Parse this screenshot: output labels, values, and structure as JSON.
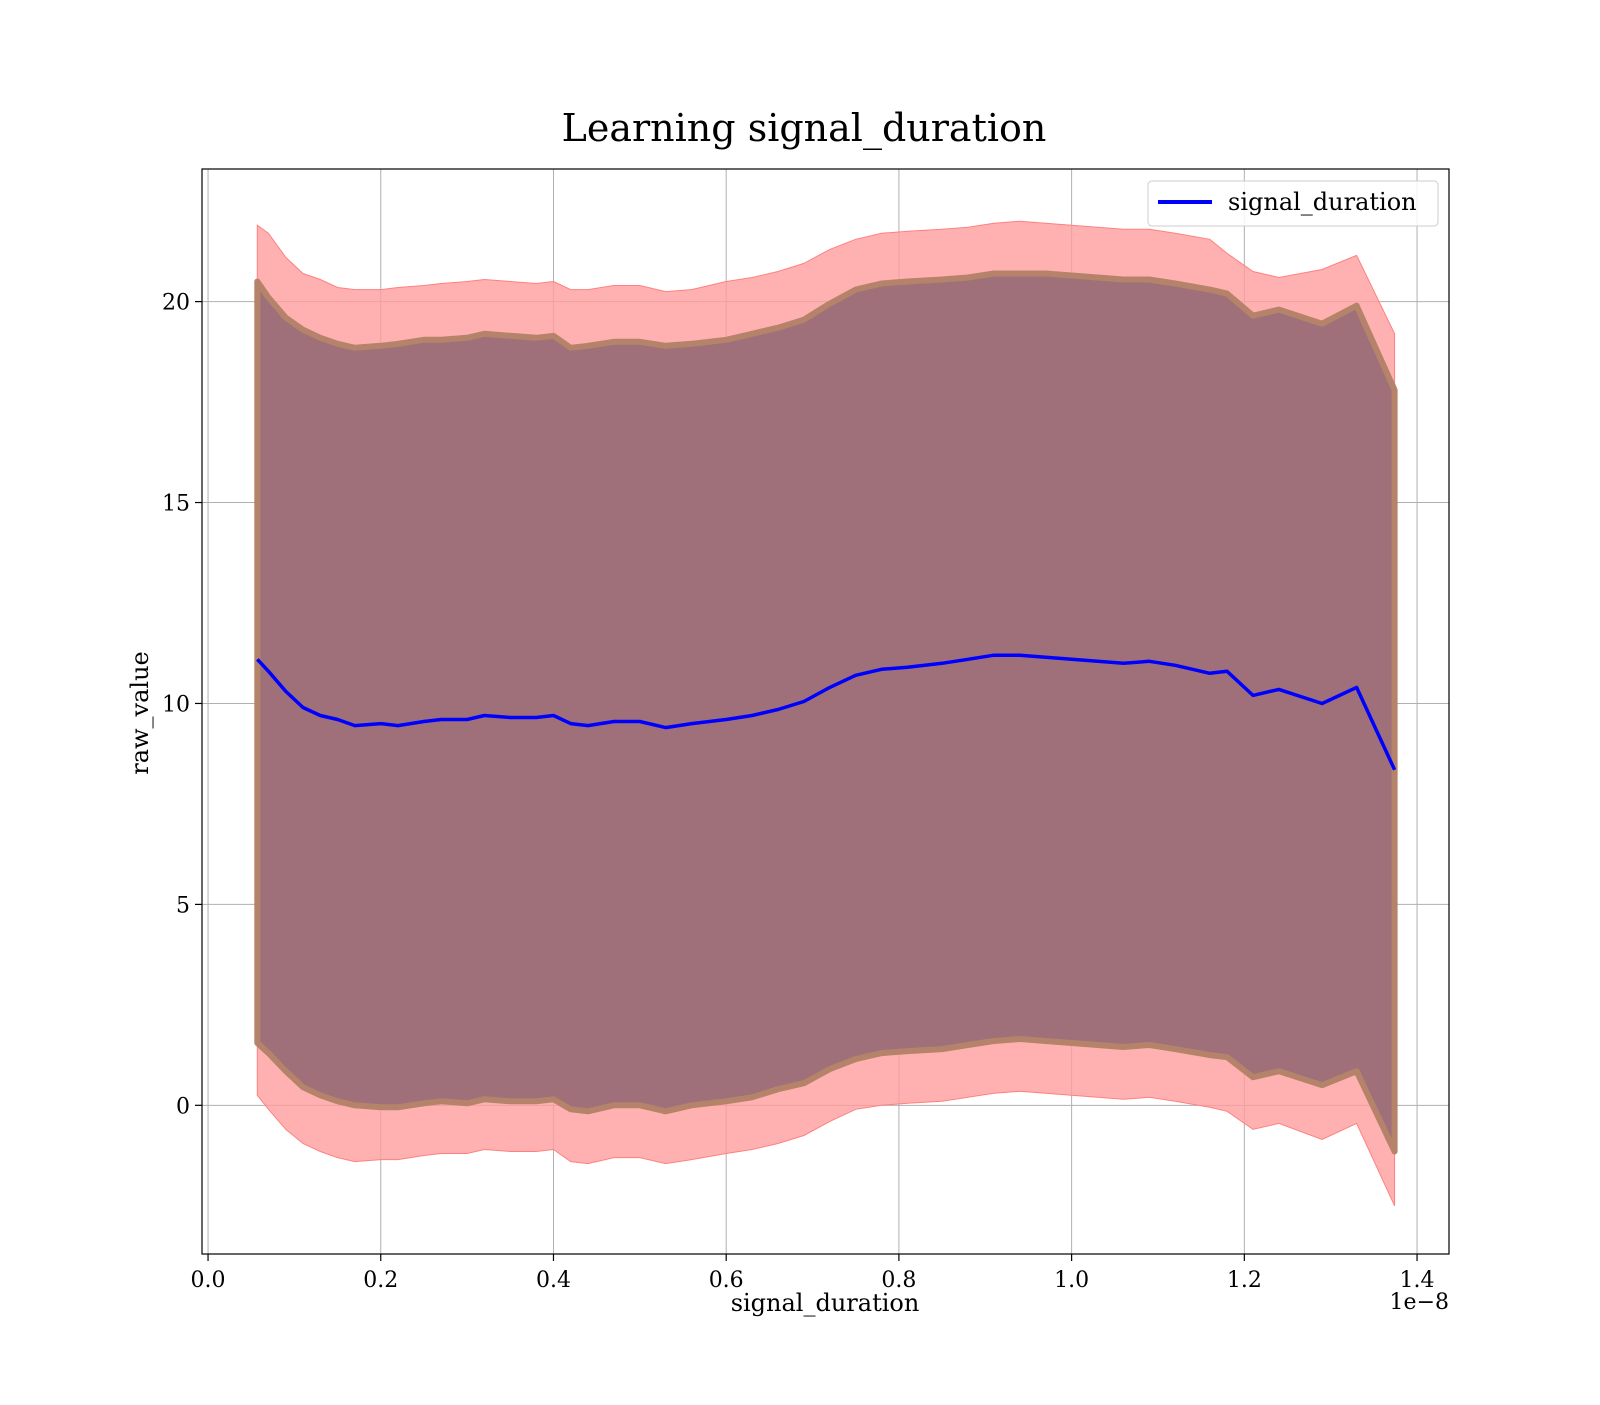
{
  "chart_data": {
    "type": "area",
    "title": "Learning signal_duration",
    "xlabel": "signal_duration",
    "ylabel": "raw_value",
    "x_offset_label": "1e−8",
    "xlim": [
      -0.007,
      1.437
    ],
    "ylim": [
      -3.7,
      23.3
    ],
    "x_ticks": [
      0.0,
      0.2,
      0.4,
      0.6,
      0.8,
      1.0,
      1.2,
      1.4
    ],
    "x_tick_labels": [
      "0.0",
      "0.2",
      "0.4",
      "0.6",
      "0.8",
      "1.0",
      "1.2",
      "1.4"
    ],
    "y_ticks": [
      0,
      5,
      10,
      15,
      20
    ],
    "y_tick_labels": [
      "0",
      "5",
      "10",
      "15",
      "20"
    ],
    "grid": true,
    "legend_position": "top-right",
    "legend": [
      "signal_duration"
    ],
    "colors": {
      "line": "#0000ff",
      "outer_band": "#ff9e9e",
      "inner_band": "#a0707a",
      "inner_band_edge": "#b5836a",
      "grid": "#b0b0b0"
    },
    "x": [
      0.057,
      0.07,
      0.09,
      0.11,
      0.13,
      0.15,
      0.17,
      0.2,
      0.22,
      0.25,
      0.27,
      0.3,
      0.32,
      0.35,
      0.38,
      0.4,
      0.42,
      0.44,
      0.47,
      0.5,
      0.53,
      0.56,
      0.6,
      0.63,
      0.66,
      0.69,
      0.72,
      0.75,
      0.78,
      0.81,
      0.85,
      0.88,
      0.91,
      0.94,
      0.97,
      1.0,
      1.03,
      1.06,
      1.09,
      1.12,
      1.16,
      1.18,
      1.21,
      1.24,
      1.29,
      1.33,
      1.374
    ],
    "series": [
      {
        "name": "signal_duration",
        "values": [
          11.1,
          10.8,
          10.3,
          9.9,
          9.7,
          9.6,
          9.45,
          9.5,
          9.45,
          9.55,
          9.6,
          9.6,
          9.7,
          9.65,
          9.65,
          9.7,
          9.5,
          9.45,
          9.55,
          9.55,
          9.4,
          9.5,
          9.6,
          9.7,
          9.85,
          10.05,
          10.4,
          10.7,
          10.85,
          10.9,
          11.0,
          11.1,
          11.2,
          11.2,
          11.15,
          11.1,
          11.05,
          11.0,
          11.05,
          10.95,
          10.75,
          10.8,
          10.2,
          10.35,
          10.0,
          10.4,
          8.35
        ]
      }
    ],
    "inner_band": {
      "upper": [
        20.5,
        20.1,
        19.6,
        19.3,
        19.1,
        18.95,
        18.85,
        18.9,
        18.95,
        19.05,
        19.05,
        19.1,
        19.2,
        19.15,
        19.1,
        19.15,
        18.85,
        18.9,
        19.0,
        19.0,
        18.9,
        18.95,
        19.05,
        19.2,
        19.35,
        19.55,
        19.95,
        20.3,
        20.45,
        20.5,
        20.55,
        20.6,
        20.7,
        20.7,
        20.7,
        20.65,
        20.6,
        20.55,
        20.55,
        20.45,
        20.3,
        20.2,
        19.65,
        19.8,
        19.45,
        19.9,
        17.8
      ],
      "lower": [
        1.55,
        1.3,
        0.85,
        0.45,
        0.25,
        0.1,
        0.0,
        -0.05,
        -0.05,
        0.05,
        0.1,
        0.05,
        0.15,
        0.1,
        0.1,
        0.15,
        -0.1,
        -0.15,
        0.0,
        0.0,
        -0.15,
        0.0,
        0.1,
        0.2,
        0.4,
        0.55,
        0.9,
        1.15,
        1.3,
        1.35,
        1.4,
        1.5,
        1.6,
        1.65,
        1.6,
        1.55,
        1.5,
        1.45,
        1.5,
        1.4,
        1.25,
        1.2,
        0.7,
        0.85,
        0.5,
        0.85,
        -1.15
      ]
    },
    "outer_band": {
      "upper": [
        21.9,
        21.7,
        21.1,
        20.7,
        20.55,
        20.35,
        20.3,
        20.3,
        20.35,
        20.4,
        20.45,
        20.5,
        20.55,
        20.5,
        20.45,
        20.5,
        20.3,
        20.3,
        20.4,
        20.4,
        20.25,
        20.3,
        20.5,
        20.6,
        20.75,
        20.95,
        21.3,
        21.55,
        21.7,
        21.75,
        21.8,
        21.85,
        21.95,
        22.0,
        21.95,
        21.9,
        21.85,
        21.8,
        21.8,
        21.7,
        21.55,
        21.2,
        20.75,
        20.6,
        20.8,
        21.15,
        19.2
      ],
      "lower": [
        0.25,
        -0.1,
        -0.6,
        -0.95,
        -1.15,
        -1.3,
        -1.4,
        -1.35,
        -1.35,
        -1.25,
        -1.2,
        -1.2,
        -1.1,
        -1.15,
        -1.15,
        -1.1,
        -1.4,
        -1.45,
        -1.3,
        -1.3,
        -1.45,
        -1.35,
        -1.2,
        -1.1,
        -0.95,
        -0.75,
        -0.4,
        -0.1,
        0.0,
        0.05,
        0.1,
        0.2,
        0.3,
        0.35,
        0.3,
        0.25,
        0.2,
        0.15,
        0.2,
        0.1,
        -0.05,
        -0.15,
        -0.6,
        -0.45,
        -0.85,
        -0.45,
        -2.5
      ]
    }
  }
}
